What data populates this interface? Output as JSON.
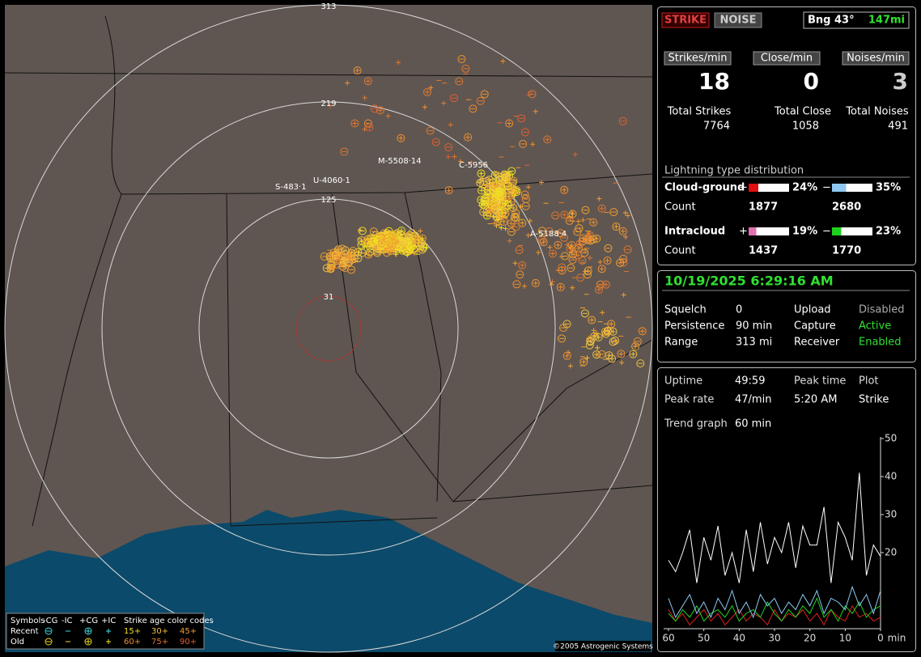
{
  "map": {
    "range_labels": [
      "313",
      "219",
      "125",
      "31"
    ],
    "storm_labels": [
      "M-5508·14",
      "C-5956",
      "S-483·1",
      "U-4060·1",
      "A-5188·4"
    ],
    "legend": {
      "title": "Symbols",
      "types": [
        "-CG",
        "-IC",
        "+CG",
        "+IC"
      ],
      "age_title": "Strike age color codes",
      "rows": [
        {
          "label": "Recent",
          "ages": [
            "15+",
            "30+",
            "45+"
          ]
        },
        {
          "label": "Old",
          "ages": [
            "60+",
            "75+",
            "90+"
          ]
        }
      ]
    },
    "copyright": "©2005 Astrogenic Systems"
  },
  "status": {
    "buttons": [
      "STRIKE",
      "NOISE"
    ],
    "bearing": "Bng 43°",
    "distance": "147mi",
    "rates": [
      {
        "label": "Strikes/min",
        "value": 18
      },
      {
        "label": "Close/min",
        "value": 0
      },
      {
        "label": "Noises/min",
        "value": 3
      }
    ],
    "totals": [
      {
        "label": "Total Strikes",
        "value": 7764
      },
      {
        "label": "Total Close",
        "value": 1058
      },
      {
        "label": "Total Noises",
        "value": 491
      }
    ],
    "distribution": {
      "title": "Lightning type distribution",
      "count_label": "Count",
      "pos_sign": "+",
      "neg_sign": "−",
      "rows": [
        {
          "name": "Cloud-ground",
          "pos": {
            "value": 24,
            "label": "24%"
          },
          "neg": {
            "value": 35,
            "label": "35%"
          },
          "pos_count": 1877,
          "neg_count": 2680,
          "pos_color": "#e01010",
          "neg_color": "#8ec8f0"
        },
        {
          "name": "Intracloud",
          "pos": {
            "value": 19,
            "label": "19%"
          },
          "neg": {
            "value": 23,
            "label": "23%"
          },
          "pos_count": 1437,
          "neg_count": 1770,
          "pos_color": "#e070b0",
          "neg_color": "#20d020"
        }
      ]
    }
  },
  "settings": {
    "datetime": "10/19/2025 6:29:16 AM",
    "items": [
      {
        "label": "Squelch",
        "value": "0"
      },
      {
        "label": "Persistence",
        "value": "90 min"
      },
      {
        "label": "Range",
        "value": "313 mi"
      },
      {
        "label": "Upload",
        "value": "Disabled"
      },
      {
        "label": "Capture",
        "value": "Active"
      },
      {
        "label": "Receiver",
        "value": "Enabled"
      }
    ]
  },
  "stats": {
    "uptime": {
      "label": "Uptime",
      "value": "49:59"
    },
    "peak_rate": {
      "label": "Peak rate",
      "value": "47/min"
    },
    "peak_time": {
      "label": "Peak time",
      "value": "5:20 AM"
    },
    "plot": {
      "label": "Plot",
      "value": "Strike"
    },
    "trend": {
      "label": "Trend graph",
      "value": "60 min"
    }
  },
  "trend_graph": {
    "type": "line",
    "x_unit": "min",
    "xlim": [
      60,
      0
    ],
    "ylim": [
      0,
      50
    ],
    "xticks": [
      60,
      50,
      40,
      30,
      20,
      10,
      0
    ],
    "yticks": [
      20,
      30,
      40,
      50
    ],
    "x": [
      60,
      58,
      56,
      54,
      52,
      50,
      48,
      46,
      44,
      42,
      40,
      38,
      36,
      34,
      32,
      30,
      28,
      26,
      24,
      22,
      20,
      18,
      16,
      14,
      12,
      10,
      8,
      6,
      4,
      2,
      0
    ],
    "series": [
      {
        "color": "#ffffff",
        "values": [
          18,
          15,
          20,
          26,
          12,
          24,
          18,
          27,
          14,
          20,
          12,
          26,
          15,
          28,
          17,
          24,
          20,
          28,
          16,
          27,
          22,
          22,
          32,
          12,
          28,
          24,
          18,
          41,
          14,
          22,
          19
        ]
      },
      {
        "color": "#8ec8f0",
        "values": [
          8,
          3,
          6,
          9,
          4,
          7,
          3,
          8,
          5,
          10,
          4,
          7,
          3,
          9,
          6,
          8,
          4,
          7,
          5,
          9,
          6,
          10,
          4,
          8,
          7,
          5,
          11,
          6,
          9,
          4,
          10
        ]
      },
      {
        "color": "#20d020",
        "values": [
          4,
          2,
          5,
          3,
          6,
          2,
          4,
          5,
          3,
          6,
          2,
          4,
          5,
          3,
          7,
          4,
          2,
          5,
          3,
          6,
          4,
          8,
          3,
          5,
          2,
          6,
          4,
          7,
          3,
          5,
          6
        ]
      },
      {
        "color": "#e02020",
        "values": [
          5,
          2,
          4,
          1,
          3,
          5,
          2,
          4,
          1,
          3,
          5,
          2,
          4,
          3,
          1,
          5,
          2,
          4,
          3,
          5,
          2,
          4,
          1,
          5,
          3,
          2,
          6,
          3,
          4,
          2,
          3
        ]
      }
    ]
  }
}
